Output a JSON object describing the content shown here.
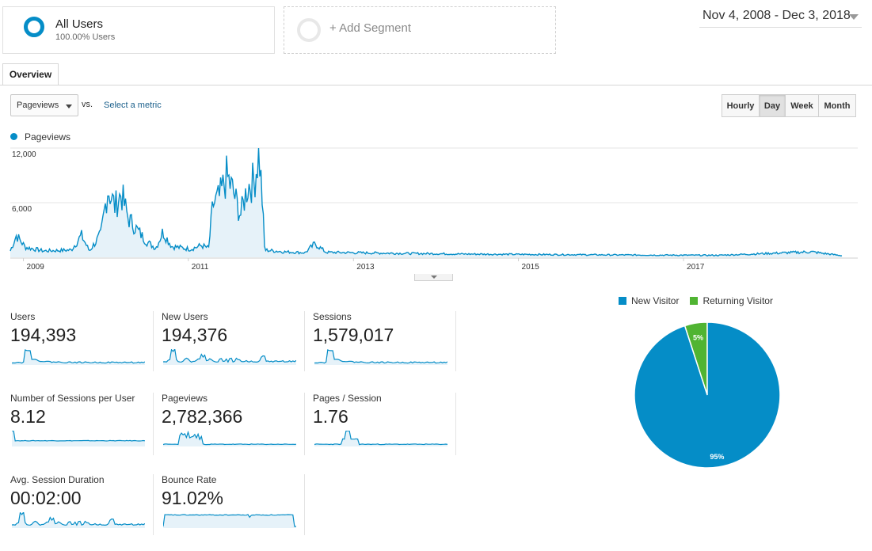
{
  "segments": {
    "all_users": {
      "title": "All Users",
      "subtitle": "100.00% Users"
    },
    "add_segment": {
      "label": "+ Add Segment"
    }
  },
  "date_range": "Nov 4, 2008 - Dec 3, 2018",
  "tabs": [
    {
      "label": "Overview"
    }
  ],
  "metric_selector": {
    "value": "Pageviews",
    "vs_label": "vs.",
    "select_metric_link": "Select a metric"
  },
  "granularity": {
    "options": [
      "Hourly",
      "Day",
      "Week",
      "Month"
    ],
    "selected": "Day"
  },
  "chart_data": [
    {
      "type": "area",
      "series": [
        {
          "name": "Pageviews",
          "color": "#058dc7"
        }
      ],
      "y_ticks": [
        "12,000",
        "6,000"
      ],
      "y_tick_values": [
        12000,
        6000
      ],
      "ylim": [
        0,
        12000
      ],
      "x_tick_labels": [
        "2009",
        "2011",
        "2013",
        "2015",
        "2017"
      ],
      "x_tick_years": [
        2009,
        2011,
        2013,
        2015,
        2017
      ],
      "x_range": [
        "2008-11-04",
        "2018-12-03"
      ],
      "approx_points": [
        {
          "date": "2008-11-04",
          "value": 700
        },
        {
          "date": "2008-12-01",
          "value": 2400
        },
        {
          "date": "2009-01-10",
          "value": 1100
        },
        {
          "date": "2009-04-01",
          "value": 700
        },
        {
          "date": "2009-08-01",
          "value": 800
        },
        {
          "date": "2009-09-15",
          "value": 2400
        },
        {
          "date": "2009-10-20",
          "value": 700
        },
        {
          "date": "2009-12-10",
          "value": 2500
        },
        {
          "date": "2010-01-10",
          "value": 7600
        },
        {
          "date": "2010-02-10",
          "value": 5600
        },
        {
          "date": "2010-03-10",
          "value": 7000
        },
        {
          "date": "2010-04-10",
          "value": 4300
        },
        {
          "date": "2010-05-20",
          "value": 3000
        },
        {
          "date": "2010-07-01",
          "value": 1700
        },
        {
          "date": "2010-08-10",
          "value": 1000
        },
        {
          "date": "2010-09-10",
          "value": 2800
        },
        {
          "date": "2010-10-20",
          "value": 1200
        },
        {
          "date": "2011-01-10",
          "value": 900
        },
        {
          "date": "2011-03-01",
          "value": 1300
        },
        {
          "date": "2011-04-01",
          "value": 1000
        },
        {
          "date": "2011-04-20",
          "value": 5800
        },
        {
          "date": "2011-05-20",
          "value": 6600
        },
        {
          "date": "2011-06-20",
          "value": 8900
        },
        {
          "date": "2011-07-20",
          "value": 7100
        },
        {
          "date": "2011-08-20",
          "value": 4600
        },
        {
          "date": "2011-09-20",
          "value": 7800
        },
        {
          "date": "2011-10-20",
          "value": 8400
        },
        {
          "date": "2011-11-10",
          "value": 11700
        },
        {
          "date": "2011-11-25",
          "value": 6000
        },
        {
          "date": "2011-12-05",
          "value": 800
        },
        {
          "date": "2012-03-01",
          "value": 600
        },
        {
          "date": "2012-06-01",
          "value": 500
        },
        {
          "date": "2012-07-15",
          "value": 1500
        },
        {
          "date": "2012-09-01",
          "value": 550
        },
        {
          "date": "2013-06-01",
          "value": 450
        },
        {
          "date": "2014-06-01",
          "value": 350
        },
        {
          "date": "2015-06-01",
          "value": 300
        },
        {
          "date": "2016-06-01",
          "value": 250
        },
        {
          "date": "2017-06-01",
          "value": 220
        },
        {
          "date": "2018-07-20",
          "value": 600
        },
        {
          "date": "2018-12-03",
          "value": 180
        }
      ]
    },
    {
      "type": "pie",
      "legend": [
        {
          "name": "New Visitor",
          "color": "#058dc7"
        },
        {
          "name": "Returning Visitor",
          "color": "#50b432"
        }
      ],
      "slices": [
        {
          "name": "New Visitor",
          "percent": 95,
          "label": "95%"
        },
        {
          "name": "Returning Visitor",
          "percent": 5,
          "label": "5%"
        }
      ]
    }
  ],
  "metrics": [
    {
      "label": "Users",
      "value": "194,393",
      "spark_shape": "spike_decay"
    },
    {
      "label": "New Users",
      "value": "194,376",
      "spark_shape": "spike_noisy"
    },
    {
      "label": "Sessions",
      "value": "1,579,017",
      "spark_shape": "spike_decay"
    },
    {
      "label": "Number of Sessions per User",
      "value": "8.12",
      "spark_shape": "step_flat"
    },
    {
      "label": "Pageviews",
      "value": "2,782,366",
      "spark_shape": "middle_bumps"
    },
    {
      "label": "Pages / Session",
      "value": "1.76",
      "spark_shape": "middle_spike"
    },
    {
      "label": "Avg. Session Duration",
      "value": "00:02:00",
      "spark_shape": "spike_noisy"
    },
    {
      "label": "Bounce Rate",
      "value": "91.02%",
      "spark_shape": "plateau"
    }
  ]
}
